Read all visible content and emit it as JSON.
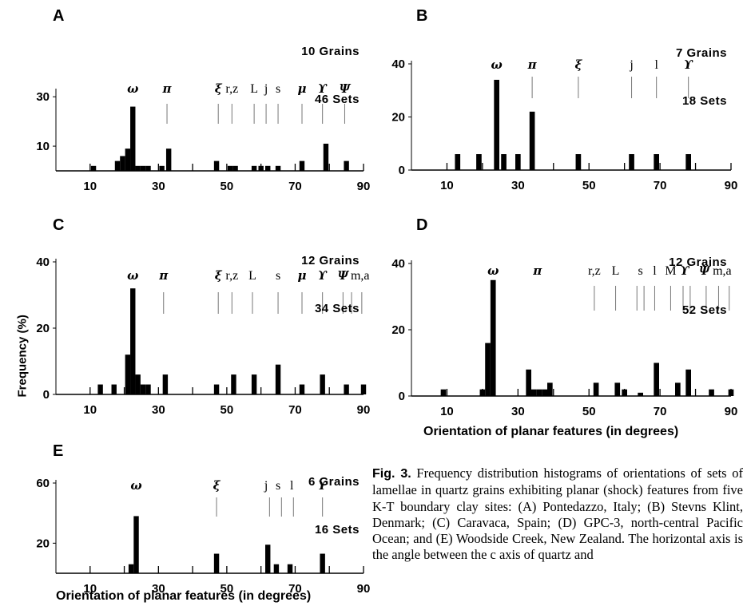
{
  "figure": {
    "y_axis_label": "Frequency (%)",
    "x_axis_label": "Orientation of planar features (in degrees)",
    "caption": {
      "label": "Fig. 3.",
      "text": " Frequency distribution histograms of orientations of sets of lamellae in quartz grains exhibiting planar (shock) features from five K-T boundary clay sites: (A) Pontedazzo, Italy; (B) Stevns Klint, Denmark; (C) Caravaca, Spain; (D) GPC-3, north-central Pacific Ocean; and (E) Woodside Creek, New Zealand. The horizontal axis is the angle between the c axis of quartz and"
    }
  },
  "chart_data": [
    {
      "panel": "A",
      "type": "bar",
      "grains": "10 Grains",
      "sets": "46 Sets",
      "xlim": [
        0,
        90
      ],
      "ylim": [
        0,
        32
      ],
      "x_ticks": [
        10,
        30,
        50,
        70,
        90
      ],
      "y_ticks": [
        10,
        30
      ],
      "bars": [
        {
          "x": 11,
          "y": 2
        },
        {
          "x": 18,
          "y": 4
        },
        {
          "x": 19.5,
          "y": 6
        },
        {
          "x": 21,
          "y": 9
        },
        {
          "x": 22.5,
          "y": 26
        },
        {
          "x": 24,
          "y": 2
        },
        {
          "x": 25.5,
          "y": 2
        },
        {
          "x": 27,
          "y": 2
        },
        {
          "x": 31,
          "y": 2
        },
        {
          "x": 33,
          "y": 9
        },
        {
          "x": 47,
          "y": 4
        },
        {
          "x": 51,
          "y": 2
        },
        {
          "x": 52.5,
          "y": 2
        },
        {
          "x": 58,
          "y": 2
        },
        {
          "x": 60,
          "y": 2
        },
        {
          "x": 62,
          "y": 2
        },
        {
          "x": 65,
          "y": 2
        },
        {
          "x": 72,
          "y": 4
        },
        {
          "x": 79,
          "y": 11
        },
        {
          "x": 85,
          "y": 4
        }
      ],
      "annotations": [
        {
          "label": "ω",
          "x": 22.5
        },
        {
          "label": "π",
          "x": 32.5
        },
        {
          "label": "ξ",
          "x": 47.5
        },
        {
          "label": "r,z",
          "x": 51.5
        },
        {
          "label": "L",
          "x": 58
        },
        {
          "label": "j",
          "x": 61.5
        },
        {
          "label": "s",
          "x": 65
        },
        {
          "label": "μ",
          "x": 72
        },
        {
          "label": "ϒ",
          "x": 78
        },
        {
          "label": "Ψ",
          "x": 84.5
        }
      ],
      "annotation_marks": [
        32.5,
        47.5,
        51.5,
        58,
        61.5,
        65,
        72,
        78,
        84.5
      ]
    },
    {
      "panel": "B",
      "type": "bar",
      "grains": "7 Grains",
      "sets": "18 Sets",
      "xlim": [
        0,
        90
      ],
      "ylim": [
        0,
        40
      ],
      "x_ticks": [
        10,
        30,
        50,
        70,
        90
      ],
      "y_ticks": [
        0,
        20,
        40
      ],
      "bars": [
        {
          "x": 13,
          "y": 6
        },
        {
          "x": 19,
          "y": 6
        },
        {
          "x": 24,
          "y": 34
        },
        {
          "x": 26,
          "y": 6
        },
        {
          "x": 30,
          "y": 6
        },
        {
          "x": 34,
          "y": 22
        },
        {
          "x": 47,
          "y": 6
        },
        {
          "x": 62,
          "y": 6
        },
        {
          "x": 69,
          "y": 6
        },
        {
          "x": 78,
          "y": 6
        }
      ],
      "annotations": [
        {
          "label": "ω",
          "x": 24
        },
        {
          "label": "π",
          "x": 34
        },
        {
          "label": "ξ",
          "x": 47
        },
        {
          "label": "j",
          "x": 62
        },
        {
          "label": "l",
          "x": 69
        },
        {
          "label": "ϒ",
          "x": 78
        }
      ],
      "annotation_marks": [
        34,
        47,
        62,
        69,
        78
      ]
    },
    {
      "panel": "C",
      "type": "bar",
      "grains": "12 Grains",
      "sets": "34 Sets",
      "xlim": [
        0,
        90
      ],
      "ylim": [
        0,
        40
      ],
      "x_ticks": [
        10,
        30,
        50,
        70,
        90
      ],
      "y_ticks": [
        0,
        20,
        40
      ],
      "bars": [
        {
          "x": 13,
          "y": 3
        },
        {
          "x": 17,
          "y": 3
        },
        {
          "x": 21,
          "y": 12
        },
        {
          "x": 22.5,
          "y": 32
        },
        {
          "x": 24,
          "y": 6
        },
        {
          "x": 25.5,
          "y": 3
        },
        {
          "x": 27,
          "y": 3
        },
        {
          "x": 32,
          "y": 6
        },
        {
          "x": 47,
          "y": 3
        },
        {
          "x": 52,
          "y": 6
        },
        {
          "x": 58,
          "y": 6
        },
        {
          "x": 65,
          "y": 9
        },
        {
          "x": 72,
          "y": 3
        },
        {
          "x": 78,
          "y": 6
        },
        {
          "x": 85,
          "y": 3
        },
        {
          "x": 90,
          "y": 3
        }
      ],
      "annotations": [
        {
          "label": "ω",
          "x": 22.5
        },
        {
          "label": "π",
          "x": 31.5
        },
        {
          "label": "ξ",
          "x": 47.5
        },
        {
          "label": "r,z",
          "x": 51.5
        },
        {
          "label": "L",
          "x": 57.5
        },
        {
          "label": "s",
          "x": 65
        },
        {
          "label": "μ",
          "x": 72
        },
        {
          "label": "ϒ",
          "x": 78
        },
        {
          "label": "Ψ",
          "x": 84
        },
        {
          "label": "m,a",
          "x": 89
        }
      ],
      "annotation_marks": [
        31.5,
        47.5,
        51.5,
        57.5,
        65,
        72,
        78,
        84,
        86.5,
        89.5
      ]
    },
    {
      "panel": "D",
      "type": "bar",
      "grains": "12 Grains",
      "sets": "52 Sets",
      "xlim": [
        0,
        90
      ],
      "ylim": [
        0,
        40
      ],
      "x_ticks": [
        10,
        30,
        50,
        70,
        90
      ],
      "y_ticks": [
        0,
        20,
        40
      ],
      "bars": [
        {
          "x": 9,
          "y": 2
        },
        {
          "x": 20,
          "y": 2
        },
        {
          "x": 21.5,
          "y": 16
        },
        {
          "x": 23,
          "y": 35
        },
        {
          "x": 33,
          "y": 8
        },
        {
          "x": 34.5,
          "y": 2
        },
        {
          "x": 36,
          "y": 2
        },
        {
          "x": 37.5,
          "y": 2
        },
        {
          "x": 39,
          "y": 4
        },
        {
          "x": 52,
          "y": 4
        },
        {
          "x": 58,
          "y": 4
        },
        {
          "x": 60,
          "y": 2
        },
        {
          "x": 64.5,
          "y": 1
        },
        {
          "x": 69,
          "y": 10
        },
        {
          "x": 75,
          "y": 4
        },
        {
          "x": 78,
          "y": 8
        },
        {
          "x": 84.5,
          "y": 2
        },
        {
          "x": 90,
          "y": 2
        }
      ],
      "annotations": [
        {
          "label": "ω",
          "x": 23
        },
        {
          "label": "π",
          "x": 35.5
        },
        {
          "label": "r,z",
          "x": 51.5
        },
        {
          "label": "L",
          "x": 57.5
        },
        {
          "label": "s",
          "x": 64.5
        },
        {
          "label": "l",
          "x": 68.5
        },
        {
          "label": "M",
          "x": 73
        },
        {
          "label": "ϒ",
          "x": 77
        },
        {
          "label": "Ψ",
          "x": 82.5
        },
        {
          "label": "m,a",
          "x": 87.5
        }
      ],
      "annotation_marks": [
        51.5,
        57.5,
        63.5,
        65.5,
        68.5,
        73,
        76.5,
        78.5,
        83,
        86.5,
        89.5
      ]
    },
    {
      "panel": "E",
      "type": "bar",
      "grains": "6 Grains",
      "sets": "16 Sets",
      "xlim": [
        0,
        90
      ],
      "ylim": [
        0,
        60
      ],
      "x_ticks": [
        10,
        30,
        50,
        70,
        90
      ],
      "y_ticks": [
        20,
        60
      ],
      "bars": [
        {
          "x": 22,
          "y": 6
        },
        {
          "x": 23.5,
          "y": 38
        },
        {
          "x": 47,
          "y": 13
        },
        {
          "x": 62,
          "y": 19
        },
        {
          "x": 64.5,
          "y": 6
        },
        {
          "x": 68.5,
          "y": 6
        },
        {
          "x": 78,
          "y": 13
        }
      ],
      "annotations": [
        {
          "label": "ω",
          "x": 23.5
        },
        {
          "label": "ξ",
          "x": 47
        },
        {
          "label": "j",
          "x": 61.5
        },
        {
          "label": "s",
          "x": 65
        },
        {
          "label": "l",
          "x": 69
        },
        {
          "label": "ϒ",
          "x": 78
        }
      ],
      "annotation_marks": [
        47,
        62.5,
        66,
        69.5,
        78
      ]
    }
  ]
}
